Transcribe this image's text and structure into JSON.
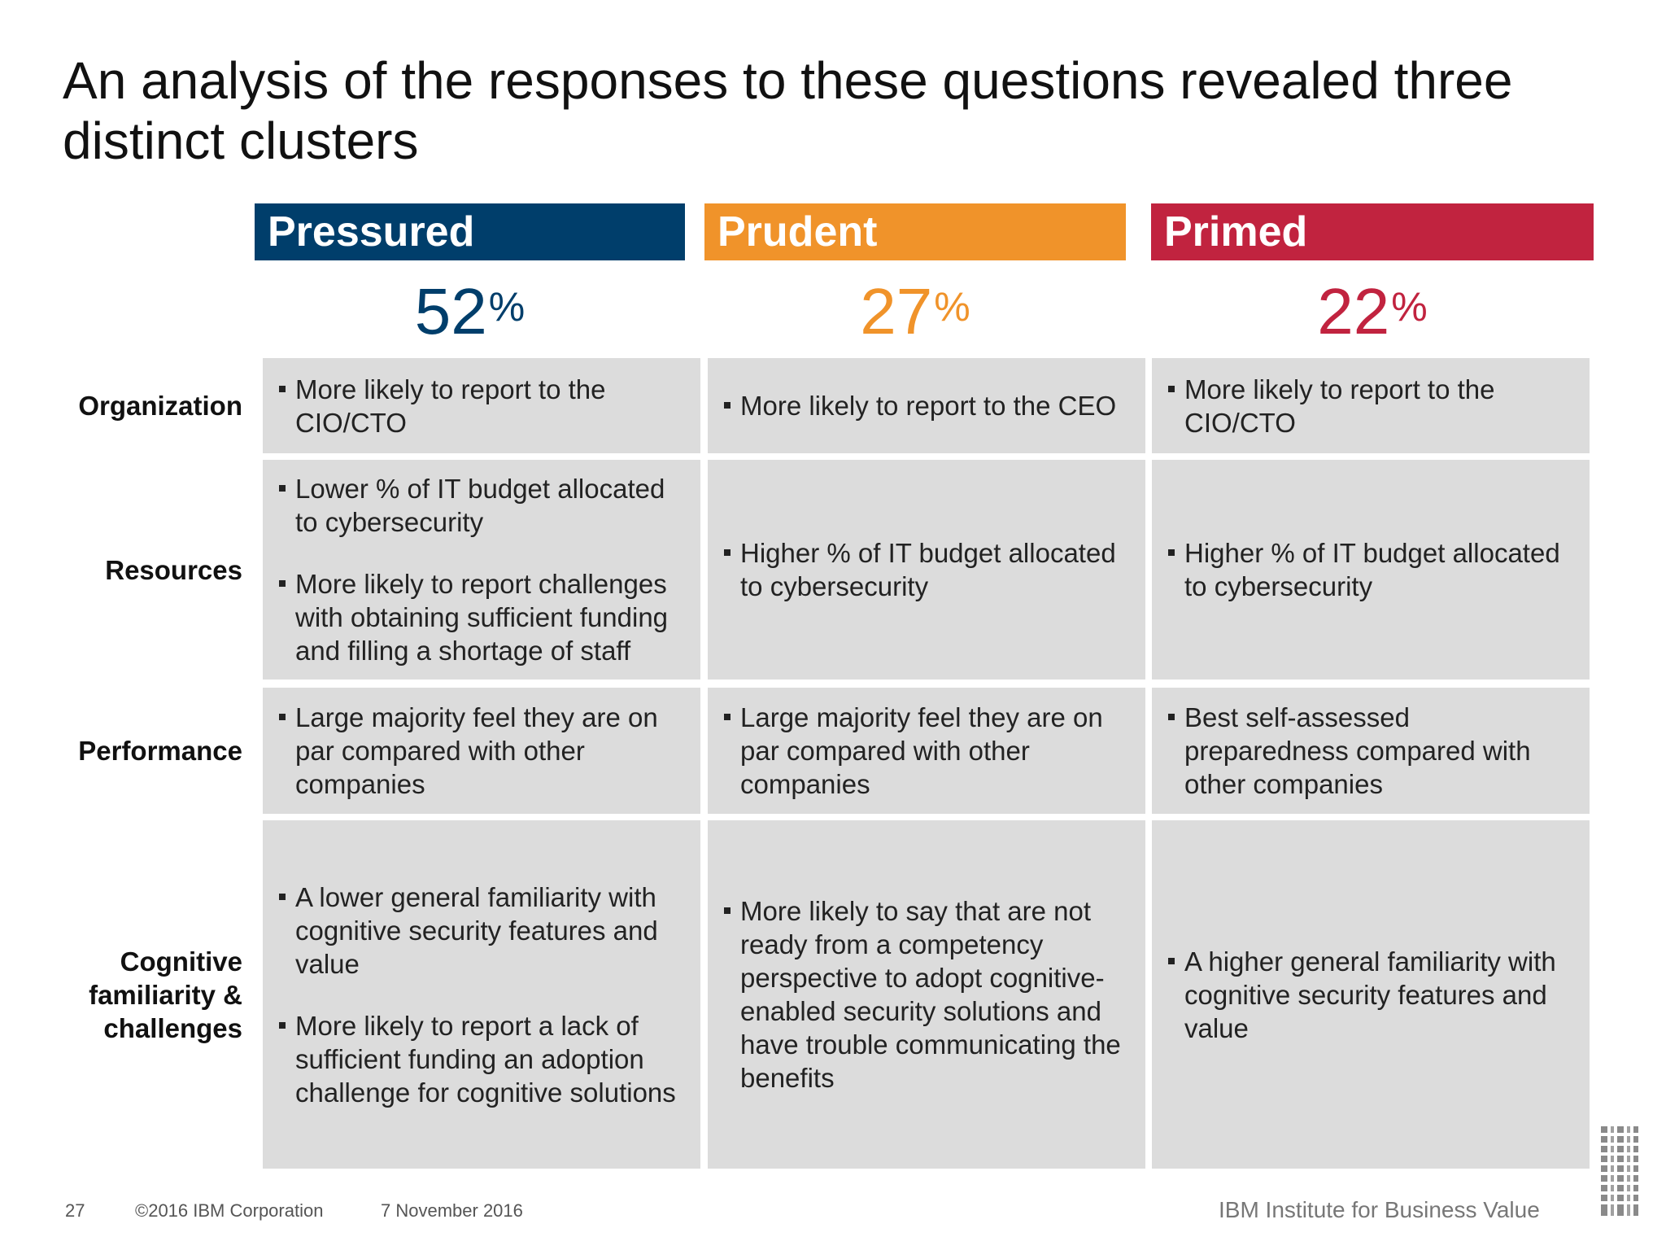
{
  "title": "An analysis of the responses to these questions revealed three distinct clusters",
  "colors": {
    "pressured": "#003e6b",
    "prudent": "#f0932a",
    "primed": "#c1233f",
    "cell_bg": "#dcdcdc"
  },
  "clusters": [
    {
      "name": "Pressured",
      "percent": "52",
      "percent_sign": "%"
    },
    {
      "name": "Prudent",
      "percent": "27",
      "percent_sign": "%"
    },
    {
      "name": "Primed",
      "percent": "22",
      "percent_sign": "%"
    }
  ],
  "rows": [
    {
      "label": "Organization",
      "cells": [
        [
          "More likely to report to the CIO/CTO"
        ],
        [
          "More likely to report to the CEO"
        ],
        [
          "More likely to report to the CIO/CTO"
        ]
      ]
    },
    {
      "label": "Resources",
      "cells": [
        [
          "Lower % of IT budget allocated to cybersecurity",
          "More likely to report challenges with obtaining sufficient funding and filling a shortage of staff"
        ],
        [
          "Higher % of IT budget allocated to cybersecurity"
        ],
        [
          "Higher % of IT budget allocated to cybersecurity"
        ]
      ]
    },
    {
      "label": "Performance",
      "cells": [
        [
          "Large majority feel they are on par compared with other companies"
        ],
        [
          "Large majority feel they are on par compared with other companies"
        ],
        [
          "Best self-assessed preparedness compared with other companies"
        ]
      ]
    },
    {
      "label": "Cognitive familiarity & challenges",
      "cells": [
        [
          "A lower general familiarity with cognitive security features and value",
          "More likely to report a lack of sufficient funding an adoption challenge for cognitive solutions"
        ],
        [
          "More likely to say that are not ready from a competency perspective to adopt cognitive-enabled security solutions and have trouble communicating the benefits"
        ],
        [
          "A higher general familiarity with cognitive security features and value"
        ]
      ]
    }
  ],
  "footer": {
    "page_number": "27",
    "copyright": "©2016 IBM Corporation",
    "date": "7 November 2016",
    "brand": "IBM Institute for Business Value",
    "logo_icon": "ibm-logo-icon"
  }
}
